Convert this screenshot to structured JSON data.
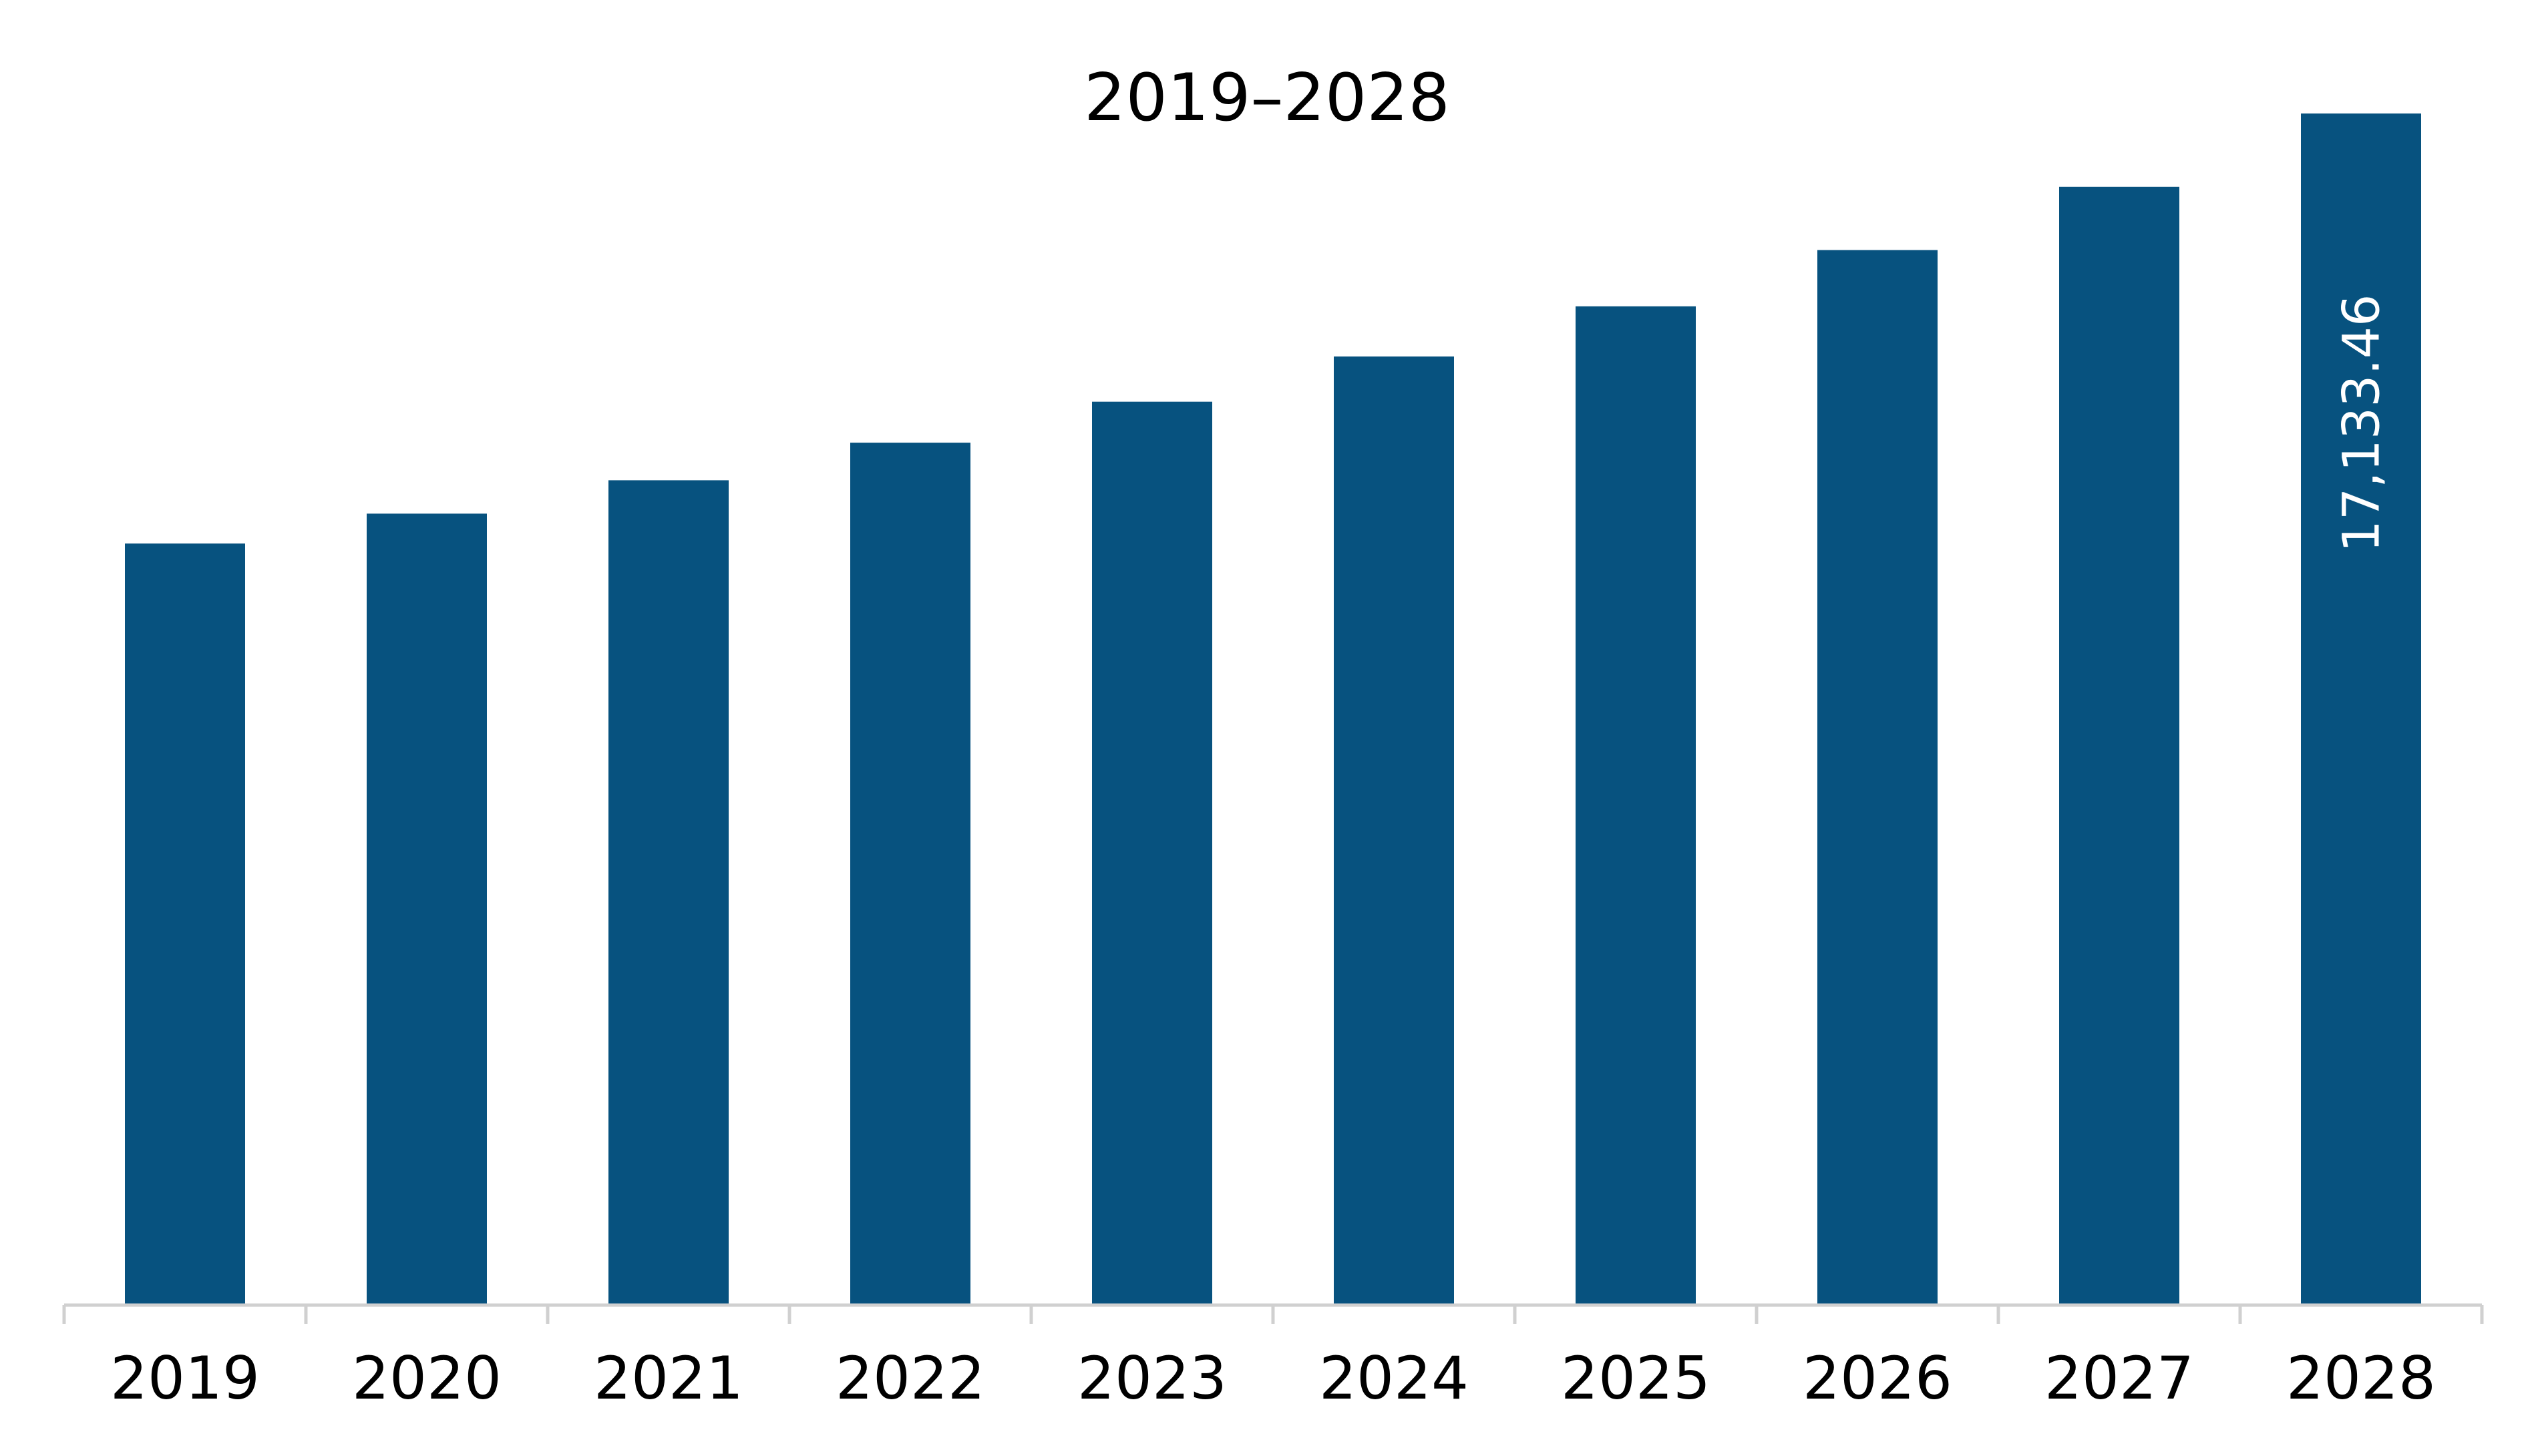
{
  "chart_data": {
    "type": "bar",
    "title": "2019–2028",
    "xlabel": "",
    "ylabel": "",
    "categories": [
      "2019",
      "2020",
      "2021",
      "2022",
      "2023",
      "2024",
      "2025",
      "2026",
      "2027",
      "2028"
    ],
    "series": [
      {
        "values": [
          10950,
          11380,
          11860,
          12400,
          12990,
          13640,
          14360,
          15170,
          16080,
          17133.46
        ],
        "data_labels": [
          "",
          "",
          "",
          "",
          "",
          "",
          "",
          "",
          "",
          "17,133.46"
        ]
      }
    ],
    "ylim": [
      0,
      17133.46
    ],
    "grid": false,
    "legend": "none",
    "colors": {
      "bar": "#07527f",
      "axis": "#d0d0d0",
      "label_on_bar": "#ffffff",
      "text": "#000000"
    }
  }
}
